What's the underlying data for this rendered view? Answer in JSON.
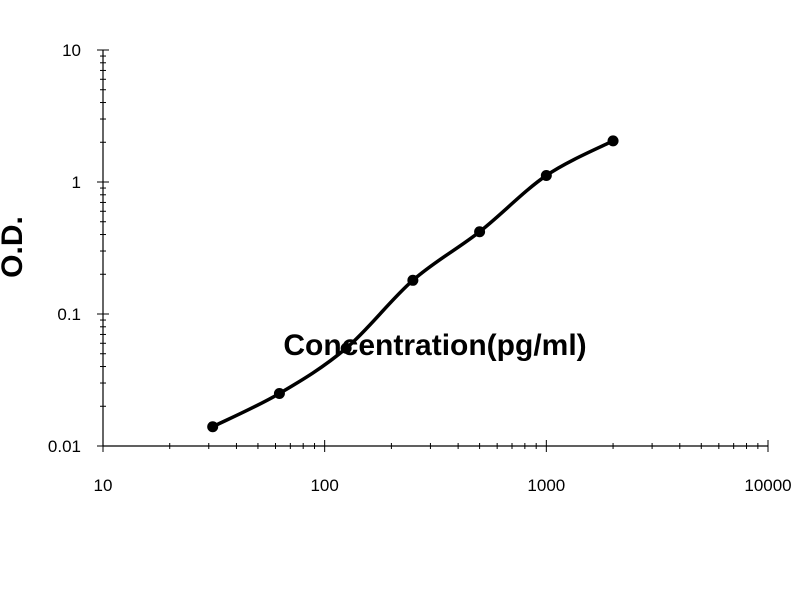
{
  "chart_data": {
    "type": "scatter",
    "title": "",
    "xlabel": "Concentration(pg/ml)",
    "ylabel": "O.D.",
    "x_scale": "log",
    "y_scale": "log",
    "xlim": [
      10,
      10000
    ],
    "ylim": [
      0.01,
      10
    ],
    "x_ticks": [
      "10",
      "100",
      "1000",
      "10000"
    ],
    "y_ticks": [
      "0.01",
      "0.1",
      "1",
      "10"
    ],
    "grid": false,
    "legend": "none",
    "series": [
      {
        "x": [
          31.25,
          62.5,
          125,
          250,
          500,
          1000,
          2000
        ],
        "y": [
          0.014,
          0.025,
          0.055,
          0.18,
          0.42,
          1.12,
          2.05
        ],
        "color": "#000000",
        "marker": "circle",
        "fit_curve": "smooth"
      }
    ]
  }
}
